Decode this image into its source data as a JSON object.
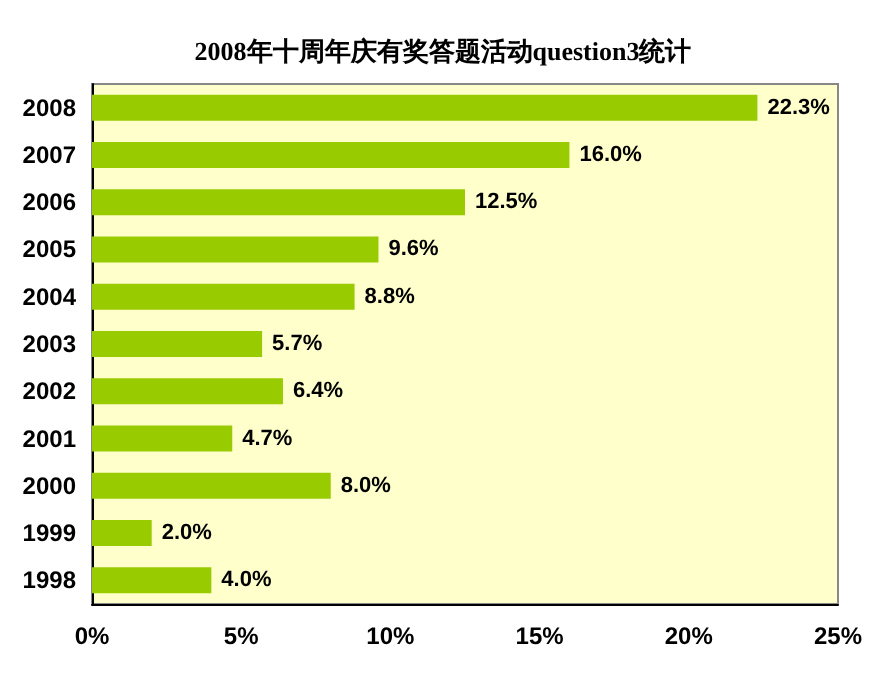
{
  "chart_data": {
    "type": "bar",
    "orientation": "horizontal",
    "title": "2008年十周年庆有奖答题活动question3统计",
    "categories": [
      "2008",
      "2007",
      "2006",
      "2005",
      "2004",
      "2003",
      "2002",
      "2001",
      "2000",
      "1999",
      "1998"
    ],
    "values": [
      22.3,
      16.0,
      12.5,
      9.6,
      8.8,
      5.7,
      6.4,
      4.7,
      8.0,
      2.0,
      4.0
    ],
    "value_labels": [
      "22.3%",
      "16.0%",
      "12.5%",
      "9.6%",
      "8.8%",
      "5.7%",
      "6.4%",
      "4.7%",
      "8.0%",
      "2.0%",
      "4.0%"
    ],
    "color": "#99cc00",
    "xlim": [
      0,
      25
    ],
    "xticks": [
      {
        "value": 0,
        "label": "0%"
      },
      {
        "value": 5,
        "label": "5%"
      },
      {
        "value": 10,
        "label": "10%"
      },
      {
        "value": 15,
        "label": "15%"
      },
      {
        "value": 20,
        "label": "20%"
      },
      {
        "value": 25,
        "label": "25%"
      }
    ],
    "grid": false
  }
}
